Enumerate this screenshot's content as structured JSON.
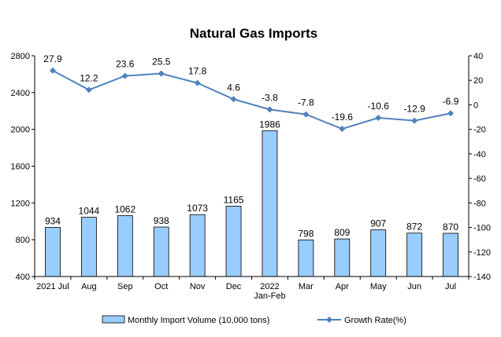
{
  "chart_data": {
    "title": "Natural Gas Imports",
    "type": "bar+line",
    "categories": [
      "2021 Jul",
      "Aug",
      "Sep",
      "Oct",
      "Nov",
      "Dec",
      "2022\nJan-Feb",
      "Mar",
      "Apr",
      "May",
      "Jun",
      "Jul"
    ],
    "series": [
      {
        "name": "Monthly Import Volume (10,000 tons)",
        "type": "bar",
        "axis": "left",
        "color": "#99ccff",
        "values": [
          934,
          1044,
          1062,
          938,
          1073,
          1165,
          1986,
          798,
          809,
          907,
          872,
          870
        ]
      },
      {
        "name": "Growth Rate(%)",
        "type": "line",
        "axis": "right",
        "color": "#4f81bd",
        "values": [
          27.9,
          12.2,
          23.6,
          25.5,
          17.8,
          4.6,
          -3.8,
          -7.8,
          -19.6,
          -10.6,
          -12.9,
          -6.9
        ]
      }
    ],
    "y_left": {
      "min": 400,
      "max": 2800,
      "ticks": [
        400,
        800,
        1200,
        1600,
        2000,
        2400,
        2800
      ]
    },
    "y_right": {
      "min": -140,
      "max": 40,
      "ticks": [
        -140,
        -120,
        -100,
        -80,
        -60,
        -40,
        -20,
        0,
        20,
        40
      ]
    },
    "grid": false,
    "legend_position": "bottom"
  }
}
